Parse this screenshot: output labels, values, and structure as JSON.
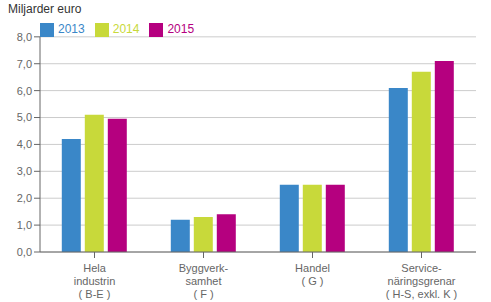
{
  "chart_data": {
    "type": "bar",
    "ylabel": "Miljarder euro",
    "categories": [
      "Hela\nindustrin\n( B-E )",
      "Byggverk-\nsamhet\n( F )",
      "Handel\n( G )",
      "Service-\nnäringsgrenar\n( H-S, exkl. K )"
    ],
    "series": [
      {
        "name": "2013",
        "color": "#3a87c8",
        "values": [
          4.2,
          1.2,
          2.5,
          6.1
        ]
      },
      {
        "name": "2014",
        "color": "#c8d93a",
        "values": [
          5.1,
          1.3,
          2.5,
          6.7
        ]
      },
      {
        "name": "2015",
        "color": "#b5007f",
        "values": [
          4.95,
          1.4,
          2.5,
          7.1
        ]
      }
    ],
    "ylim": [
      0,
      8.0
    ],
    "yticks": [
      {
        "value": 0.0,
        "label": "0,0"
      },
      {
        "value": 1.0,
        "label": "1,0"
      },
      {
        "value": 2.0,
        "label": "2,0"
      },
      {
        "value": 3.0,
        "label": "3,0"
      },
      {
        "value": 4.0,
        "label": "4,0"
      },
      {
        "value": 5.0,
        "label": "5,0"
      },
      {
        "value": 6.0,
        "label": "6,0"
      },
      {
        "value": 7.0,
        "label": "7,0"
      },
      {
        "value": 8.0,
        "label": "8,0"
      }
    ],
    "grid": true,
    "legend": "upper left"
  }
}
